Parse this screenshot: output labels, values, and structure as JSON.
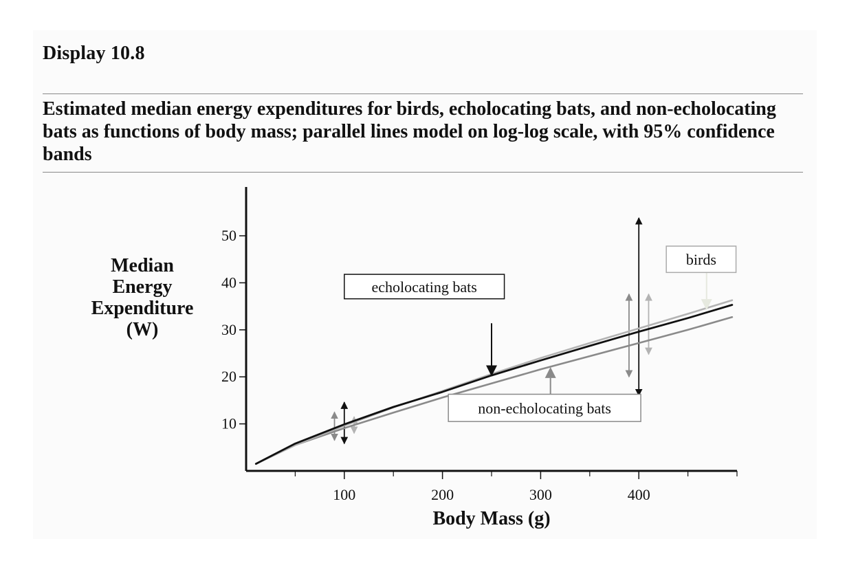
{
  "display_label": "Display 10.8",
  "caption": "Estimated median energy expenditures for birds, echolocating bats, and non-echolocating bats as functions of body mass; parallel lines model on log-log scale, with 95% confidence bands",
  "chart_data": {
    "type": "line",
    "title": "",
    "xlabel": "Body Mass (g)",
    "ylabel_lines": [
      "Median",
      "Energy",
      "Expenditure",
      "(W)"
    ],
    "xlim": [
      0,
      500
    ],
    "ylim": [
      0,
      60
    ],
    "x_ticks": [
      100,
      200,
      300,
      400
    ],
    "x_minor_ticks": [
      50,
      150,
      250,
      350,
      450,
      500
    ],
    "y_ticks": [
      10,
      20,
      30,
      40,
      50
    ],
    "grid": false,
    "series": [
      {
        "id": "birds",
        "color": "#b3b3b3",
        "x": [
          10,
          50,
          100,
          150,
          200,
          250,
          300,
          350,
          400,
          450,
          495
        ],
        "y": [
          1.5,
          5.5,
          9.6,
          13.5,
          17.0,
          20.6,
          24.0,
          27.2,
          30.3,
          33.4,
          36.3
        ]
      },
      {
        "id": "echolocating",
        "color": "#111111",
        "x": [
          10,
          50,
          100,
          150,
          200,
          250,
          300,
          350,
          400,
          450,
          495
        ],
        "y": [
          1.5,
          5.8,
          9.9,
          13.6,
          16.8,
          20.3,
          23.5,
          26.6,
          29.6,
          32.5,
          35.3
        ]
      },
      {
        "id": "non-echolocating",
        "color": "#8a8a8a",
        "x": [
          10,
          50,
          100,
          150,
          200,
          250,
          300,
          350,
          400,
          450,
          495
        ],
        "y": [
          1.5,
          5.5,
          9.1,
          12.4,
          15.6,
          18.6,
          21.6,
          24.4,
          27.2,
          30.0,
          32.7
        ]
      }
    ],
    "confidence_bands": [
      {
        "series": "non-echolocating",
        "x": 90,
        "low": 6.5,
        "high": 12.5,
        "color": "#8a8a8a"
      },
      {
        "series": "echolocating",
        "x": 100,
        "low": 5.8,
        "high": 14.6,
        "color": "#111111"
      },
      {
        "series": "birds",
        "x": 110,
        "low": 8.0,
        "high": 11.5,
        "color": "#b3b3b3"
      },
      {
        "series": "non-echolocating",
        "x": 390,
        "low": 20.0,
        "high": 37.6,
        "color": "#8a8a8a"
      },
      {
        "series": "echolocating",
        "x": 400,
        "low": 16.0,
        "high": 53.8,
        "color": "#111111"
      },
      {
        "series": "birds",
        "x": 410,
        "low": 24.8,
        "high": 37.6,
        "color": "#b3b3b3"
      }
    ],
    "annotations": [
      {
        "label": "echolocating bats",
        "series": "echolocating",
        "text_color": "#111111",
        "border": "#111111",
        "arrow_color": "#111111",
        "box_x": 100,
        "box_y": 36.6,
        "box_w": 163,
        "box_h": 5.2,
        "arrow_from": [
          250,
          31.4
        ],
        "arrow_to": [
          250,
          20.1
        ]
      },
      {
        "label": "birds",
        "series": "birds",
        "text_color": "#111111",
        "border": "#aaaaaa",
        "arrow_color": "#e6e9df",
        "box_x": 428,
        "box_y": 42.2,
        "box_w": 71,
        "box_h": 5.6,
        "arrow_from": [
          469,
          42.2
        ],
        "arrow_to": [
          469,
          34.2
        ]
      },
      {
        "label": "non-echolocating bats",
        "series": "non-echolocating",
        "text_color": "#111111",
        "border": "#8a8a8a",
        "arrow_color": "#8a8a8a",
        "box_x": 206,
        "box_y": 10.5,
        "box_w": 196,
        "box_h": 5.8,
        "arrow_from": [
          310,
          10.5
        ],
        "arrow_to": [
          310,
          22.1
        ]
      }
    ]
  }
}
